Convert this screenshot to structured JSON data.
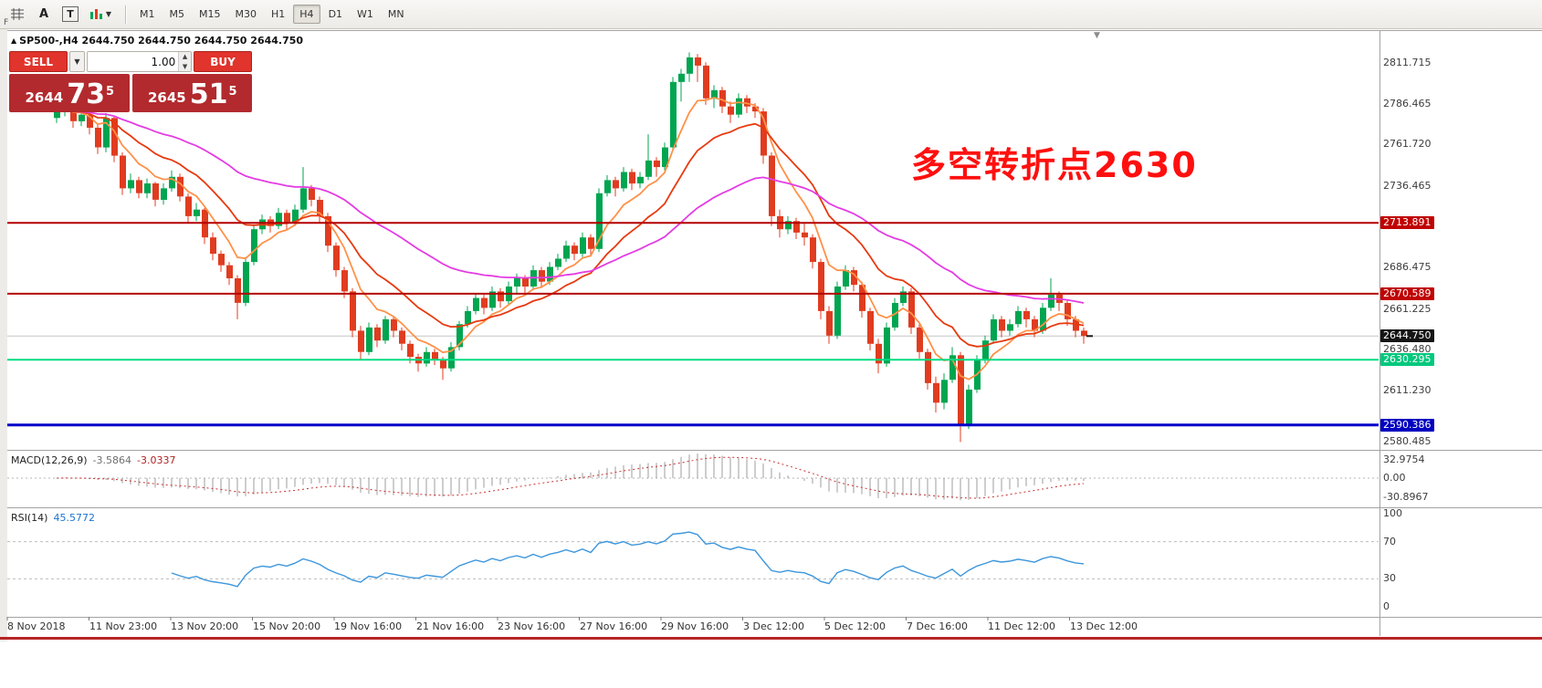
{
  "toolbar": {
    "corner_label": "F",
    "text_tool_a": "A",
    "text_tool_t": "T",
    "timeframes": [
      "M1",
      "M5",
      "M15",
      "M30",
      "H1",
      "H4",
      "D1",
      "W1",
      "MN"
    ],
    "active_timeframe": "H4"
  },
  "chart_header": {
    "text": "SP500-,H4 2644.750 2644.750 2644.750 2644.750"
  },
  "trade_panel": {
    "sell_label": "SELL",
    "buy_label": "BUY",
    "volume": "1.00",
    "sell_price_small": "2644",
    "sell_price_big": "73",
    "sell_price_sup": "5",
    "buy_price_small": "2645",
    "buy_price_big": "51",
    "buy_price_sup": "5"
  },
  "annotation": {
    "text": "多空转折点2630",
    "color": "#FF0F0F"
  },
  "price_axis": {
    "labels": [
      {
        "text": "2811.715",
        "value": 2811.715,
        "style": "plain"
      },
      {
        "text": "2786.465",
        "value": 2786.465,
        "style": "plain"
      },
      {
        "text": "2761.720",
        "value": 2761.72,
        "style": "plain"
      },
      {
        "text": "2736.465",
        "value": 2736.465,
        "style": "plain"
      },
      {
        "text": "2713.891",
        "value": 2713.891,
        "style": "red"
      },
      {
        "text": "2686.475",
        "value": 2686.475,
        "style": "plain"
      },
      {
        "text": "2670.589",
        "value": 2670.589,
        "style": "red"
      },
      {
        "text": "2661.225",
        "value": 2661.225,
        "style": "plain"
      },
      {
        "text": "2644.750",
        "value": 2644.75,
        "style": "current"
      },
      {
        "text": "2636.480",
        "value": 2636.48,
        "style": "plain"
      },
      {
        "text": "2630.295",
        "value": 2630.295,
        "style": "green"
      },
      {
        "text": "2611.230",
        "value": 2611.23,
        "style": "plain"
      },
      {
        "text": "2590.386",
        "value": 2590.386,
        "style": "blue"
      },
      {
        "text": "2580.485",
        "value": 2580.485,
        "style": "plain"
      }
    ]
  },
  "macd": {
    "label": "MACD(12,26,9)",
    "value_main": "-3.5864",
    "value_signal": "-3.0337",
    "axis": [
      "32.9754",
      "0.00",
      "-30.8967"
    ]
  },
  "rsi": {
    "label": "RSI(14)",
    "value": "45.5772",
    "axis": [
      "100",
      "70",
      "30",
      "0"
    ],
    "levels": [
      70,
      30
    ]
  },
  "chart_data": {
    "type": "candlestick",
    "symbol": "SP500-",
    "timeframe": "H4",
    "current_price": 2644.75,
    "bull_color": "#00a550",
    "bear_color": "#e03c20",
    "horizontal_lines": [
      {
        "value": 2644.75,
        "color": "#c6c6c6",
        "width": 1
      },
      {
        "value": 2713.891,
        "color": "#b40000",
        "width": 2
      },
      {
        "value": 2670.589,
        "color": "#b40000",
        "width": 2
      },
      {
        "value": 2630.295,
        "color": "#00dc82",
        "width": 2
      },
      {
        "value": 2590.386,
        "color": "#0000c8",
        "width": 3
      }
    ],
    "moving_averages": [
      {
        "period": 7,
        "color": "#ff9148"
      },
      {
        "period": 16,
        "color": "#e8390e"
      },
      {
        "period": 42,
        "color": "#e43ce4"
      }
    ],
    "indicator_colors": {
      "macd_hist": "#9e9e9e",
      "macd_signal": "#c83232",
      "rsi_line": "#3c96dc"
    },
    "x_axis_labels": [
      "8 Nov 2018",
      "11 Nov 23:00",
      "13 Nov 20:00",
      "15 Nov 20:00",
      "19 Nov 16:00",
      "21 Nov 16:00",
      "23 Nov 16:00",
      "27 Nov 16:00",
      "29 Nov 16:00",
      "3 Dec 12:00",
      "5 Dec 12:00",
      "7 Dec 16:00",
      "11 Dec 12:00",
      "13 Dec 12:00"
    ],
    "candles": [
      [
        2778,
        2786,
        2775,
        2782
      ],
      [
        2782,
        2791,
        2779,
        2788
      ],
      [
        2788,
        2790,
        2772,
        2776
      ],
      [
        2776,
        2783,
        2773,
        2780
      ],
      [
        2780,
        2782,
        2768,
        2772
      ],
      [
        2772,
        2774,
        2756,
        2760
      ],
      [
        2760,
        2781,
        2757,
        2778
      ],
      [
        2778,
        2779,
        2751,
        2755
      ],
      [
        2755,
        2757,
        2731,
        2735
      ],
      [
        2735,
        2744,
        2732,
        2740
      ],
      [
        2740,
        2742,
        2729,
        2732
      ],
      [
        2732,
        2741,
        2729,
        2738
      ],
      [
        2738,
        2739,
        2724,
        2728
      ],
      [
        2728,
        2738,
        2725,
        2735
      ],
      [
        2735,
        2746,
        2733,
        2742
      ],
      [
        2742,
        2744,
        2727,
        2730
      ],
      [
        2730,
        2732,
        2714,
        2718
      ],
      [
        2718,
        2726,
        2715,
        2722
      ],
      [
        2722,
        2723,
        2701,
        2705
      ],
      [
        2705,
        2708,
        2691,
        2695
      ],
      [
        2695,
        2697,
        2684,
        2688
      ],
      [
        2688,
        2690,
        2676,
        2680
      ],
      [
        2680,
        2682,
        2655,
        2665
      ],
      [
        2665,
        2693,
        2663,
        2690
      ],
      [
        2690,
        2713,
        2688,
        2710
      ],
      [
        2710,
        2719,
        2707,
        2716
      ],
      [
        2716,
        2718,
        2708,
        2712
      ],
      [
        2712,
        2723,
        2710,
        2720
      ],
      [
        2720,
        2722,
        2710,
        2714
      ],
      [
        2714,
        2725,
        2712,
        2722
      ],
      [
        2722,
        2748,
        2720,
        2735
      ],
      [
        2735,
        2737,
        2724,
        2728
      ],
      [
        2728,
        2730,
        2714,
        2718
      ],
      [
        2718,
        2720,
        2696,
        2700
      ],
      [
        2700,
        2702,
        2681,
        2685
      ],
      [
        2685,
        2687,
        2668,
        2672
      ],
      [
        2672,
        2674,
        2644,
        2648
      ],
      [
        2648,
        2651,
        2630,
        2635
      ],
      [
        2635,
        2653,
        2633,
        2650
      ],
      [
        2650,
        2652,
        2638,
        2642
      ],
      [
        2642,
        2657,
        2640,
        2655
      ],
      [
        2655,
        2657,
        2644,
        2648
      ],
      [
        2648,
        2650,
        2636,
        2640
      ],
      [
        2640,
        2642,
        2628,
        2632
      ],
      [
        2632,
        2634,
        2623,
        2628
      ],
      [
        2628,
        2638,
        2626,
        2635
      ],
      [
        2635,
        2637,
        2627,
        2630
      ],
      [
        2630,
        2632,
        2618,
        2625
      ],
      [
        2625,
        2641,
        2623,
        2638
      ],
      [
        2638,
        2654,
        2636,
        2652
      ],
      [
        2652,
        2663,
        2650,
        2660
      ],
      [
        2660,
        2671,
        2658,
        2668
      ],
      [
        2668,
        2670,
        2658,
        2662
      ],
      [
        2662,
        2675,
        2660,
        2672
      ],
      [
        2672,
        2674,
        2662,
        2666
      ],
      [
        2666,
        2678,
        2664,
        2675
      ],
      [
        2675,
        2683,
        2670,
        2680
      ],
      [
        2680,
        2682,
        2671,
        2675
      ],
      [
        2675,
        2688,
        2673,
        2685
      ],
      [
        2685,
        2687,
        2674,
        2678
      ],
      [
        2678,
        2690,
        2676,
        2687
      ],
      [
        2687,
        2695,
        2685,
        2692
      ],
      [
        2692,
        2703,
        2690,
        2700
      ],
      [
        2700,
        2702,
        2691,
        2695
      ],
      [
        2695,
        2708,
        2693,
        2705
      ],
      [
        2705,
        2707,
        2694,
        2698
      ],
      [
        2698,
        2735,
        2696,
        2732
      ],
      [
        2732,
        2743,
        2730,
        2740
      ],
      [
        2740,
        2742,
        2730,
        2735
      ],
      [
        2735,
        2748,
        2733,
        2745
      ],
      [
        2745,
        2747,
        2734,
        2738
      ],
      [
        2738,
        2745,
        2735,
        2742
      ],
      [
        2742,
        2768,
        2740,
        2752
      ],
      [
        2752,
        2754,
        2742,
        2748
      ],
      [
        2748,
        2763,
        2746,
        2760
      ],
      [
        2760,
        2803,
        2758,
        2800
      ],
      [
        2800,
        2808,
        2788,
        2805
      ],
      [
        2805,
        2818,
        2800,
        2815
      ],
      [
        2815,
        2817,
        2800,
        2810
      ],
      [
        2810,
        2812,
        2786,
        2790
      ],
      [
        2790,
        2798,
        2784,
        2795
      ],
      [
        2795,
        2797,
        2781,
        2785
      ],
      [
        2785,
        2788,
        2775,
        2780
      ],
      [
        2780,
        2793,
        2778,
        2790
      ],
      [
        2790,
        2792,
        2781,
        2785
      ],
      [
        2785,
        2787,
        2778,
        2782
      ],
      [
        2782,
        2784,
        2750,
        2755
      ],
      [
        2755,
        2757,
        2712,
        2718
      ],
      [
        2718,
        2722,
        2705,
        2710
      ],
      [
        2710,
        2718,
        2707,
        2715
      ],
      [
        2715,
        2717,
        2704,
        2708
      ],
      [
        2708,
        2714,
        2700,
        2705
      ],
      [
        2705,
        2707,
        2686,
        2690
      ],
      [
        2690,
        2692,
        2655,
        2660
      ],
      [
        2660,
        2663,
        2640,
        2645
      ],
      [
        2645,
        2678,
        2643,
        2675
      ],
      [
        2675,
        2688,
        2673,
        2685
      ],
      [
        2685,
        2687,
        2672,
        2676
      ],
      [
        2676,
        2678,
        2656,
        2660
      ],
      [
        2660,
        2662,
        2636,
        2640
      ],
      [
        2640,
        2643,
        2622,
        2628
      ],
      [
        2628,
        2653,
        2626,
        2650
      ],
      [
        2650,
        2668,
        2648,
        2665
      ],
      [
        2665,
        2675,
        2663,
        2672
      ],
      [
        2672,
        2674,
        2646,
        2650
      ],
      [
        2650,
        2652,
        2631,
        2635
      ],
      [
        2635,
        2637,
        2612,
        2616
      ],
      [
        2616,
        2620,
        2598,
        2604
      ],
      [
        2604,
        2622,
        2600,
        2618
      ],
      [
        2618,
        2638,
        2616,
        2633
      ],
      [
        2633,
        2635,
        2580,
        2590
      ],
      [
        2590,
        2615,
        2588,
        2612
      ],
      [
        2612,
        2633,
        2610,
        2630
      ],
      [
        2630,
        2645,
        2628,
        2642
      ],
      [
        2642,
        2658,
        2640,
        2655
      ],
      [
        2655,
        2657,
        2644,
        2648
      ],
      [
        2648,
        2655,
        2645,
        2652
      ],
      [
        2652,
        2663,
        2650,
        2660
      ],
      [
        2660,
        2662,
        2650,
        2655
      ],
      [
        2655,
        2657,
        2644,
        2648
      ],
      [
        2648,
        2665,
        2646,
        2662
      ],
      [
        2662,
        2680,
        2660,
        2670
      ],
      [
        2670,
        2672,
        2660,
        2665
      ],
      [
        2665,
        2667,
        2651,
        2655
      ],
      [
        2655,
        2657,
        2644,
        2648
      ],
      [
        2648,
        2650,
        2640,
        2644.75
      ]
    ]
  }
}
